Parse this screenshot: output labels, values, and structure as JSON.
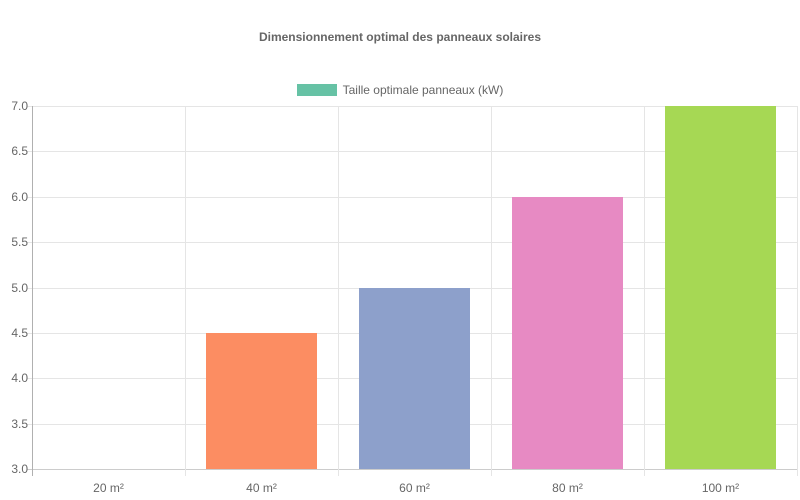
{
  "chart_data": {
    "type": "bar",
    "title": "Dimensionnement optimal des panneaux solaires",
    "xlabel": "",
    "ylabel": "",
    "categories": [
      "20 m²",
      "40 m²",
      "60 m²",
      "80 m²",
      "100 m²"
    ],
    "series": [
      {
        "name": "Taille optimale panneaux (kW)",
        "values": [
          3.0,
          4.5,
          5.0,
          6.0,
          7.0
        ],
        "colors": [
          "#66c2a5",
          "#fc8d62",
          "#8da0cb",
          "#e78ac3",
          "#a6d854"
        ]
      }
    ],
    "ylim": [
      3.0,
      7.0
    ],
    "yticks": [
      "7.0",
      "6.5",
      "6.0",
      "5.5",
      "5.0",
      "4.5",
      "4.0",
      "3.5",
      "3.0"
    ],
    "grid": true,
    "legend_position": "top"
  },
  "legend": {
    "label": "Taille optimale panneaux (kW)",
    "color": "#66c2a5"
  }
}
